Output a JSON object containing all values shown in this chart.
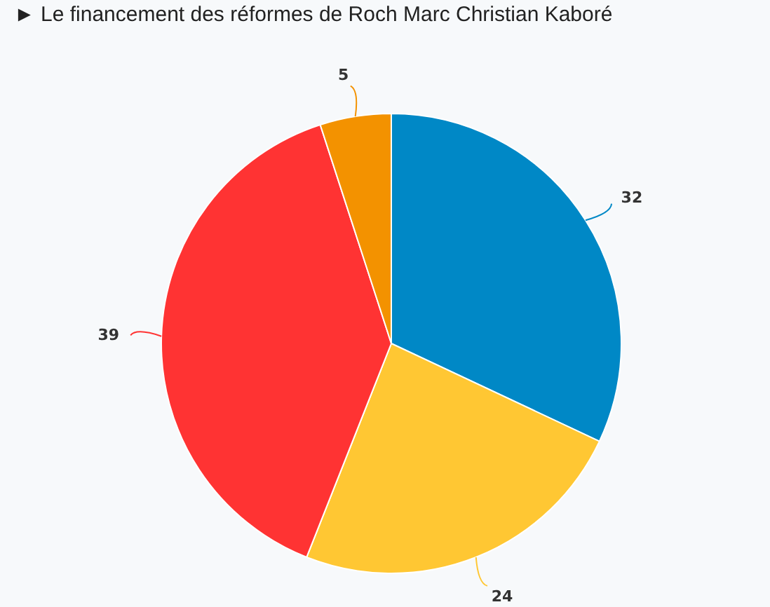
{
  "chart_data": {
    "type": "pie",
    "title": "► Le financement des réformes de Roch Marc Christian Kaboré",
    "categories": [
      null,
      null,
      null,
      null
    ],
    "values": [
      32,
      24,
      39,
      5
    ],
    "colors": [
      "#0088c6",
      "#ffc733",
      "#ff3333",
      "#f39200"
    ],
    "data_labels": true
  }
}
